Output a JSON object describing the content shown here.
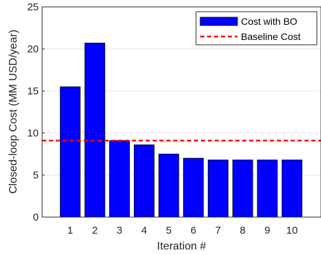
{
  "chart_data": {
    "type": "bar",
    "categories": [
      "1",
      "2",
      "3",
      "4",
      "5",
      "6",
      "7",
      "8",
      "9",
      "10"
    ],
    "series": [
      {
        "name": "Cost with BO",
        "values": [
          15.5,
          20.7,
          9.1,
          8.6,
          7.5,
          7.0,
          6.8,
          6.8,
          6.8,
          6.8
        ],
        "color": "#0000ff"
      }
    ],
    "baseline": {
      "name": "Baseline Cost",
      "value": 9.1,
      "color": "#ff0000",
      "style": "dashed"
    },
    "xlabel": "Iteration #",
    "ylabel": "Closed-loop Cost (MM USD/year)",
    "ylim": [
      0,
      25
    ],
    "yticks": [
      0,
      5,
      10,
      15,
      20,
      25
    ],
    "grid": true,
    "legend_position": "top-right"
  }
}
